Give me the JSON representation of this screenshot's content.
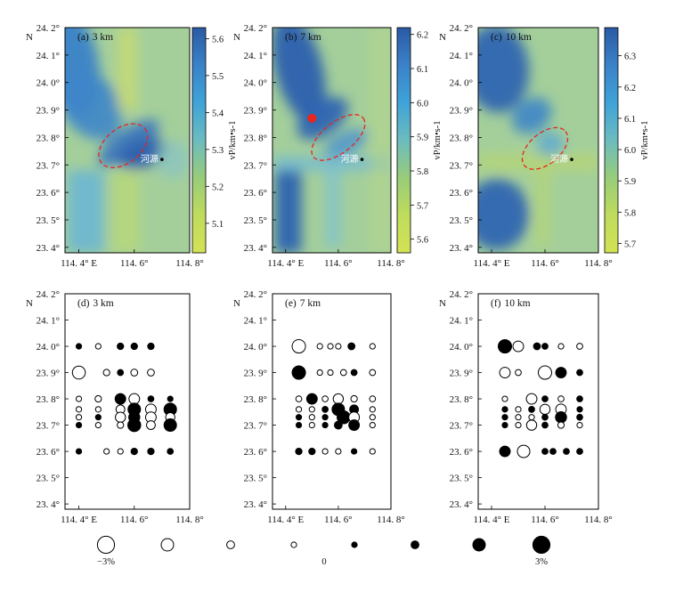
{
  "figure": {
    "xticks": [
      "114. 4° E",
      "114. 6°",
      "114. 8°"
    ],
    "yticks": [
      "23. 4°",
      "23. 5°",
      "23. 6°",
      "23. 7°",
      "23. 8°",
      "23. 9°",
      "24. 0°",
      "24. 1°",
      "24. 2°"
    ],
    "north_label": "N",
    "place_label": "河源",
    "colorbar_label": "vP/km•s-1",
    "legend": {
      "left": "−3%",
      "center": "0",
      "right": "3%"
    },
    "colors": {
      "frame": "#000000",
      "ellipse": "#e8261c",
      "high_velocity": "#1f4e9c",
      "low_velocity": "#c9de5a"
    }
  },
  "chart_data": [
    {
      "type": "heatmap",
      "panel": "(a)",
      "depth": "3 km",
      "xlim": [
        114.35,
        114.8
      ],
      "ylim": [
        23.38,
        24.2
      ],
      "colorbar": {
        "ticks": [
          5.1,
          5.2,
          5.3,
          5.4,
          5.5,
          5.6
        ],
        "range": [
          5.02,
          5.63
        ]
      },
      "ellipse": {
        "cx": 114.56,
        "cy": 23.77,
        "rx_deg": 0.1,
        "ry_deg": 0.04,
        "angle_deg": -38
      },
      "red_star": null,
      "town": {
        "lon": 114.7,
        "lat": 23.72
      }
    },
    {
      "type": "heatmap",
      "panel": "(b)",
      "depth": "7 km",
      "xlim": [
        114.35,
        114.8
      ],
      "ylim": [
        23.38,
        24.2
      ],
      "colorbar": {
        "ticks": [
          5.6,
          5.7,
          5.8,
          5.9,
          6.0,
          6.1,
          6.2
        ],
        "range": [
          5.56,
          6.22
        ]
      },
      "ellipse": {
        "cx": 114.6,
        "cy": 23.8,
        "rx_deg": 0.12,
        "ry_deg": 0.035,
        "angle_deg": -38
      },
      "red_star": {
        "lon": 114.5,
        "lat": 23.87
      },
      "town": {
        "lon": 114.69,
        "lat": 23.72
      }
    },
    {
      "type": "heatmap",
      "panel": "(c)",
      "depth": "10 km",
      "xlim": [
        114.35,
        114.8
      ],
      "ylim": [
        23.38,
        24.2
      ],
      "colorbar": {
        "ticks": [
          5.7,
          5.8,
          5.9,
          6.0,
          6.1,
          6.2,
          6.3
        ],
        "range": [
          5.67,
          6.39
        ]
      },
      "ellipse": {
        "cx": 114.6,
        "cy": 23.76,
        "rx_deg": 0.1,
        "ry_deg": 0.035,
        "angle_deg": -40
      },
      "red_star": null,
      "town": {
        "lon": 114.7,
        "lat": 23.72
      }
    },
    {
      "type": "scatter",
      "panel": "(d)",
      "depth": "3 km",
      "xlim": [
        114.35,
        114.8
      ],
      "ylim": [
        23.38,
        24.2
      ],
      "points": [
        [
          114.4,
          24.0,
          0.5
        ],
        [
          114.47,
          24.0,
          -0.5
        ],
        [
          114.55,
          24.0,
          0.7
        ],
        [
          114.6,
          24.0,
          0.7
        ],
        [
          114.66,
          24.0,
          0.7
        ],
        [
          114.4,
          23.9,
          -2.1
        ],
        [
          114.5,
          23.9,
          -0.7
        ],
        [
          114.55,
          23.9,
          0.6
        ],
        [
          114.6,
          23.9,
          -0.8
        ],
        [
          114.66,
          23.9,
          -0.8
        ],
        [
          114.4,
          23.8,
          -0.5
        ],
        [
          114.47,
          23.8,
          -0.7
        ],
        [
          114.55,
          23.8,
          1.6
        ],
        [
          114.6,
          23.8,
          -1.6
        ],
        [
          114.66,
          23.8,
          0.6
        ],
        [
          114.73,
          23.8,
          0.5
        ],
        [
          114.4,
          23.76,
          -0.5
        ],
        [
          114.47,
          23.76,
          -0.5
        ],
        [
          114.55,
          23.76,
          -1.2
        ],
        [
          114.6,
          23.76,
          2.0
        ],
        [
          114.66,
          23.76,
          -1.6
        ],
        [
          114.73,
          23.76,
          2.0
        ],
        [
          114.4,
          23.73,
          -0.5
        ],
        [
          114.47,
          23.73,
          0.5
        ],
        [
          114.55,
          23.73,
          -1.5
        ],
        [
          114.6,
          23.73,
          1.7
        ],
        [
          114.66,
          23.73,
          -1.6
        ],
        [
          114.73,
          23.73,
          -1.3
        ],
        [
          114.4,
          23.7,
          0.5
        ],
        [
          114.47,
          23.7,
          -0.5
        ],
        [
          114.55,
          23.7,
          -0.7
        ],
        [
          114.6,
          23.7,
          2.1
        ],
        [
          114.66,
          23.7,
          -1.2
        ],
        [
          114.73,
          23.7,
          2.0
        ],
        [
          114.4,
          23.6,
          0.5
        ],
        [
          114.5,
          23.6,
          -0.5
        ],
        [
          114.55,
          23.6,
          -0.5
        ],
        [
          114.6,
          23.6,
          0.7
        ],
        [
          114.66,
          23.6,
          0.7
        ],
        [
          114.73,
          23.6,
          0.6
        ]
      ]
    },
    {
      "type": "scatter",
      "panel": "(e)",
      "depth": "7 km",
      "xlim": [
        114.35,
        114.8
      ],
      "ylim": [
        23.38,
        24.2
      ],
      "points": [
        [
          114.45,
          24.0,
          -2.2
        ],
        [
          114.53,
          24.0,
          -0.5
        ],
        [
          114.57,
          24.0,
          -0.5
        ],
        [
          114.6,
          24.0,
          -0.5
        ],
        [
          114.65,
          24.0,
          0.8
        ],
        [
          114.73,
          24.0,
          -0.5
        ],
        [
          114.45,
          23.9,
          2.2
        ],
        [
          114.53,
          23.9,
          -0.5
        ],
        [
          114.57,
          23.9,
          -0.5
        ],
        [
          114.62,
          23.9,
          -0.6
        ],
        [
          114.66,
          23.9,
          0.6
        ],
        [
          114.73,
          23.9,
          -0.6
        ],
        [
          114.45,
          23.8,
          -0.6
        ],
        [
          114.5,
          23.8,
          1.6
        ],
        [
          114.55,
          23.8,
          -0.6
        ],
        [
          114.6,
          23.8,
          -1.5
        ],
        [
          114.66,
          23.8,
          -0.7
        ],
        [
          114.73,
          23.8,
          -0.6
        ],
        [
          114.45,
          23.76,
          -0.5
        ],
        [
          114.5,
          23.76,
          -0.5
        ],
        [
          114.55,
          23.76,
          0.6
        ],
        [
          114.6,
          23.76,
          2.0
        ],
        [
          114.66,
          23.76,
          1.2
        ],
        [
          114.73,
          23.76,
          -0.5
        ],
        [
          114.45,
          23.73,
          0.5
        ],
        [
          114.5,
          23.73,
          -0.5
        ],
        [
          114.55,
          23.73,
          0.5
        ],
        [
          114.62,
          23.73,
          2.1
        ],
        [
          114.66,
          23.73,
          -1.6
        ],
        [
          114.73,
          23.73,
          -0.5
        ],
        [
          114.45,
          23.7,
          0.5
        ],
        [
          114.5,
          23.7,
          -0.5
        ],
        [
          114.55,
          23.7,
          0.5
        ],
        [
          114.6,
          23.7,
          1.0
        ],
        [
          114.66,
          23.7,
          1.6
        ],
        [
          114.73,
          23.7,
          -0.5
        ],
        [
          114.45,
          23.6,
          0.7
        ],
        [
          114.5,
          23.6,
          0.7
        ],
        [
          114.55,
          23.6,
          -0.5
        ],
        [
          114.6,
          23.6,
          -0.5
        ],
        [
          114.66,
          23.6,
          0.5
        ],
        [
          114.73,
          23.6,
          -0.5
        ]
      ]
    },
    {
      "type": "scatter",
      "panel": "(f)",
      "depth": "10 km",
      "xlim": [
        114.35,
        114.8
      ],
      "ylim": [
        23.38,
        24.2
      ],
      "points": [
        [
          114.45,
          24.0,
          2.2
        ],
        [
          114.5,
          24.0,
          -1.6
        ],
        [
          114.57,
          24.0,
          0.8
        ],
        [
          114.6,
          24.0,
          0.6
        ],
        [
          114.66,
          24.0,
          -0.5
        ],
        [
          114.73,
          24.0,
          -0.6
        ],
        [
          114.45,
          23.9,
          -1.6
        ],
        [
          114.5,
          23.9,
          -0.6
        ],
        [
          114.6,
          23.9,
          -2.2
        ],
        [
          114.66,
          23.9,
          1.6
        ],
        [
          114.73,
          23.9,
          0.6
        ],
        [
          114.45,
          23.8,
          -0.5
        ],
        [
          114.55,
          23.8,
          -1.6
        ],
        [
          114.6,
          23.8,
          0.6
        ],
        [
          114.66,
          23.8,
          -0.6
        ],
        [
          114.73,
          23.8,
          0.6
        ],
        [
          114.45,
          23.76,
          0.5
        ],
        [
          114.5,
          23.76,
          -0.5
        ],
        [
          114.55,
          23.76,
          0.6
        ],
        [
          114.6,
          23.76,
          -1.5
        ],
        [
          114.66,
          23.76,
          -1.6
        ],
        [
          114.73,
          23.76,
          0.5
        ],
        [
          114.45,
          23.73,
          0.5
        ],
        [
          114.5,
          23.73,
          -0.5
        ],
        [
          114.55,
          23.73,
          -0.5
        ],
        [
          114.6,
          23.73,
          0.6
        ],
        [
          114.66,
          23.73,
          1.7
        ],
        [
          114.73,
          23.73,
          0.6
        ],
        [
          114.45,
          23.7,
          0.5
        ],
        [
          114.5,
          23.7,
          -0.5
        ],
        [
          114.55,
          23.7,
          -1.5
        ],
        [
          114.6,
          23.7,
          0.6
        ],
        [
          114.66,
          23.7,
          -0.7
        ],
        [
          114.73,
          23.7,
          -0.5
        ],
        [
          114.45,
          23.6,
          1.6
        ],
        [
          114.52,
          23.6,
          -2.0
        ],
        [
          114.6,
          23.6,
          0.6
        ],
        [
          114.63,
          23.6,
          0.6
        ],
        [
          114.68,
          23.6,
          0.6
        ],
        [
          114.73,
          23.6,
          0.6
        ]
      ]
    },
    {
      "type": "legend_scale",
      "values": [
        -3,
        -2,
        -1,
        -0.5,
        0.5,
        1,
        2,
        3
      ]
    }
  ]
}
